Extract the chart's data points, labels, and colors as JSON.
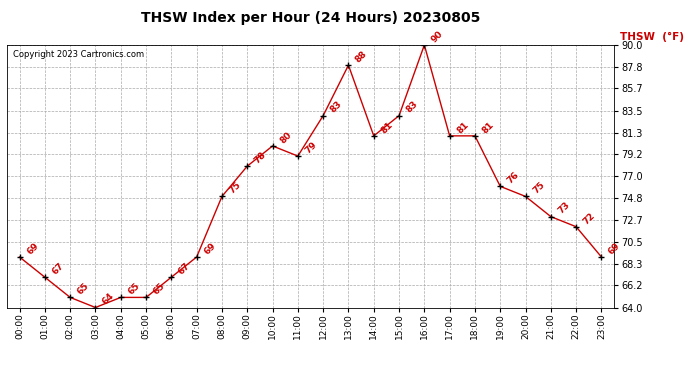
{
  "title": "THSW Index per Hour (24 Hours) 20230805",
  "copyright": "Copyright 2023 Cartronics.com",
  "legend_label": "THSW  (°F)",
  "hours": [
    "00:00",
    "01:00",
    "02:00",
    "03:00",
    "04:00",
    "05:00",
    "06:00",
    "07:00",
    "08:00",
    "09:00",
    "10:00",
    "11:00",
    "12:00",
    "13:00",
    "14:00",
    "15:00",
    "16:00",
    "17:00",
    "18:00",
    "19:00",
    "20:00",
    "21:00",
    "22:00",
    "23:00"
  ],
  "values": [
    69,
    67,
    65,
    64,
    65,
    65,
    67,
    69,
    75,
    78,
    80,
    79,
    83,
    88,
    81,
    83,
    90,
    81,
    81,
    76,
    75,
    73,
    72,
    69
  ],
  "line_color": "#cc0000",
  "marker_color": "#000000",
  "grid_color": "#aaaaaa",
  "bg_color": "#ffffff",
  "title_color": "#000000",
  "copyright_color": "#000000",
  "legend_color": "#cc0000",
  "label_color": "#cc0000",
  "ylim_min": 64.0,
  "ylim_max": 90.0,
  "yticks": [
    64.0,
    66.2,
    68.3,
    70.5,
    72.7,
    74.8,
    77.0,
    79.2,
    81.3,
    83.5,
    85.7,
    87.8,
    90.0
  ]
}
